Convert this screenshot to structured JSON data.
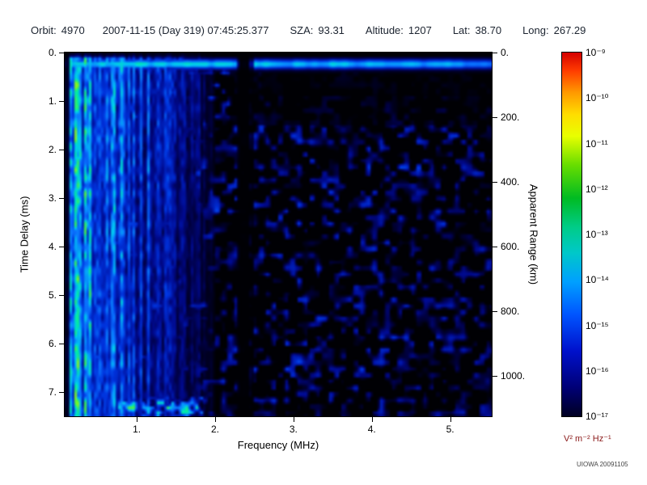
{
  "header": {
    "orbit_label": "Orbit:",
    "orbit": "4970",
    "datetime": "2007-11-15 (Day 319) 07:45:25.377",
    "sza_label": "SZA:",
    "sza": "93.31",
    "altitude_label": "Altitude:",
    "altitude": "1207",
    "lat_label": "Lat:",
    "lat": "38.70",
    "long_label": "Long:",
    "long": "267.29"
  },
  "chart_data": {
    "type": "heatmap",
    "title": "",
    "xlabel": "Frequency (MHz)",
    "ylabel_left": "Time Delay (ms)",
    "ylabel_right": "Apparent Range (km)",
    "x_range_mhz": [
      0.08,
      5.53
    ],
    "y_range_ms": [
      0,
      7.5
    ],
    "right_axis_km_per_ms": 150,
    "x_ticks": [
      {
        "value": 1,
        "label": "1."
      },
      {
        "value": 2,
        "label": "2."
      },
      {
        "value": 3,
        "label": "3."
      },
      {
        "value": 4,
        "label": "4."
      },
      {
        "value": 5,
        "label": "5."
      }
    ],
    "y_ticks_left": [
      {
        "value": 0,
        "label": "0."
      },
      {
        "value": 1,
        "label": "1."
      },
      {
        "value": 2,
        "label": "2."
      },
      {
        "value": 3,
        "label": "3."
      },
      {
        "value": 4,
        "label": "4."
      },
      {
        "value": 5,
        "label": "5."
      },
      {
        "value": 6,
        "label": "6."
      },
      {
        "value": 7,
        "label": "7."
      }
    ],
    "y_ticks_right": [
      {
        "value": 0,
        "label": "0."
      },
      {
        "value": 200,
        "label": "200."
      },
      {
        "value": 400,
        "label": "400."
      },
      {
        "value": 600,
        "label": "600."
      },
      {
        "value": 800,
        "label": "800."
      },
      {
        "value": 1000,
        "label": "1000."
      }
    ],
    "colorbar": {
      "ticks": [
        "10⁻⁹",
        "10⁻¹⁰",
        "10⁻¹¹",
        "10⁻¹²",
        "10⁻¹³",
        "10⁻¹⁴",
        "10⁻¹⁵",
        "10⁻¹⁶",
        "10⁻¹⁷"
      ],
      "units": "V² m⁻² Hz⁻¹",
      "gradient_stops": [
        [
          0,
          "#d40000"
        ],
        [
          0.05,
          "#ff3c00"
        ],
        [
          0.11,
          "#ff9900"
        ],
        [
          0.17,
          "#ffdd00"
        ],
        [
          0.23,
          "#e8ff00"
        ],
        [
          0.31,
          "#66dd00"
        ],
        [
          0.4,
          "#00bb22"
        ],
        [
          0.48,
          "#00cc88"
        ],
        [
          0.55,
          "#00c8c8"
        ],
        [
          0.63,
          "#00a0ff"
        ],
        [
          0.72,
          "#0055ff"
        ],
        [
          0.82,
          "#0011cc"
        ],
        [
          0.92,
          "#000077"
        ],
        [
          1,
          "#000022"
        ]
      ]
    },
    "colormap_stops": [
      [
        0,
        "#000004"
      ],
      [
        0.1,
        "#00003a"
      ],
      [
        0.22,
        "#000a8e"
      ],
      [
        0.38,
        "#0033dd"
      ],
      [
        0.52,
        "#0b76ff"
      ],
      [
        0.66,
        "#00c8f0"
      ],
      [
        0.78,
        "#00e8a8"
      ],
      [
        0.88,
        "#55f03a"
      ],
      [
        0.95,
        "#e8f000"
      ],
      [
        1,
        "#ff2200"
      ]
    ],
    "features": {
      "surface_echo_band_ms": 0.24,
      "ionospheric_stripe_region_max_mhz": 2.0,
      "rfi_gap_mhz": 2.38,
      "bottom_left_blobs_ms": 7.35,
      "bottom_left_blobs_mhz": [
        0.75,
        1.85
      ],
      "background": "black with diffuse blue speckle echoes",
      "sparse_region": "upper right (f > 2.2 MHz, t < 1.5 ms) mostly black"
    }
  },
  "watermark": "UIOWA 20091105"
}
